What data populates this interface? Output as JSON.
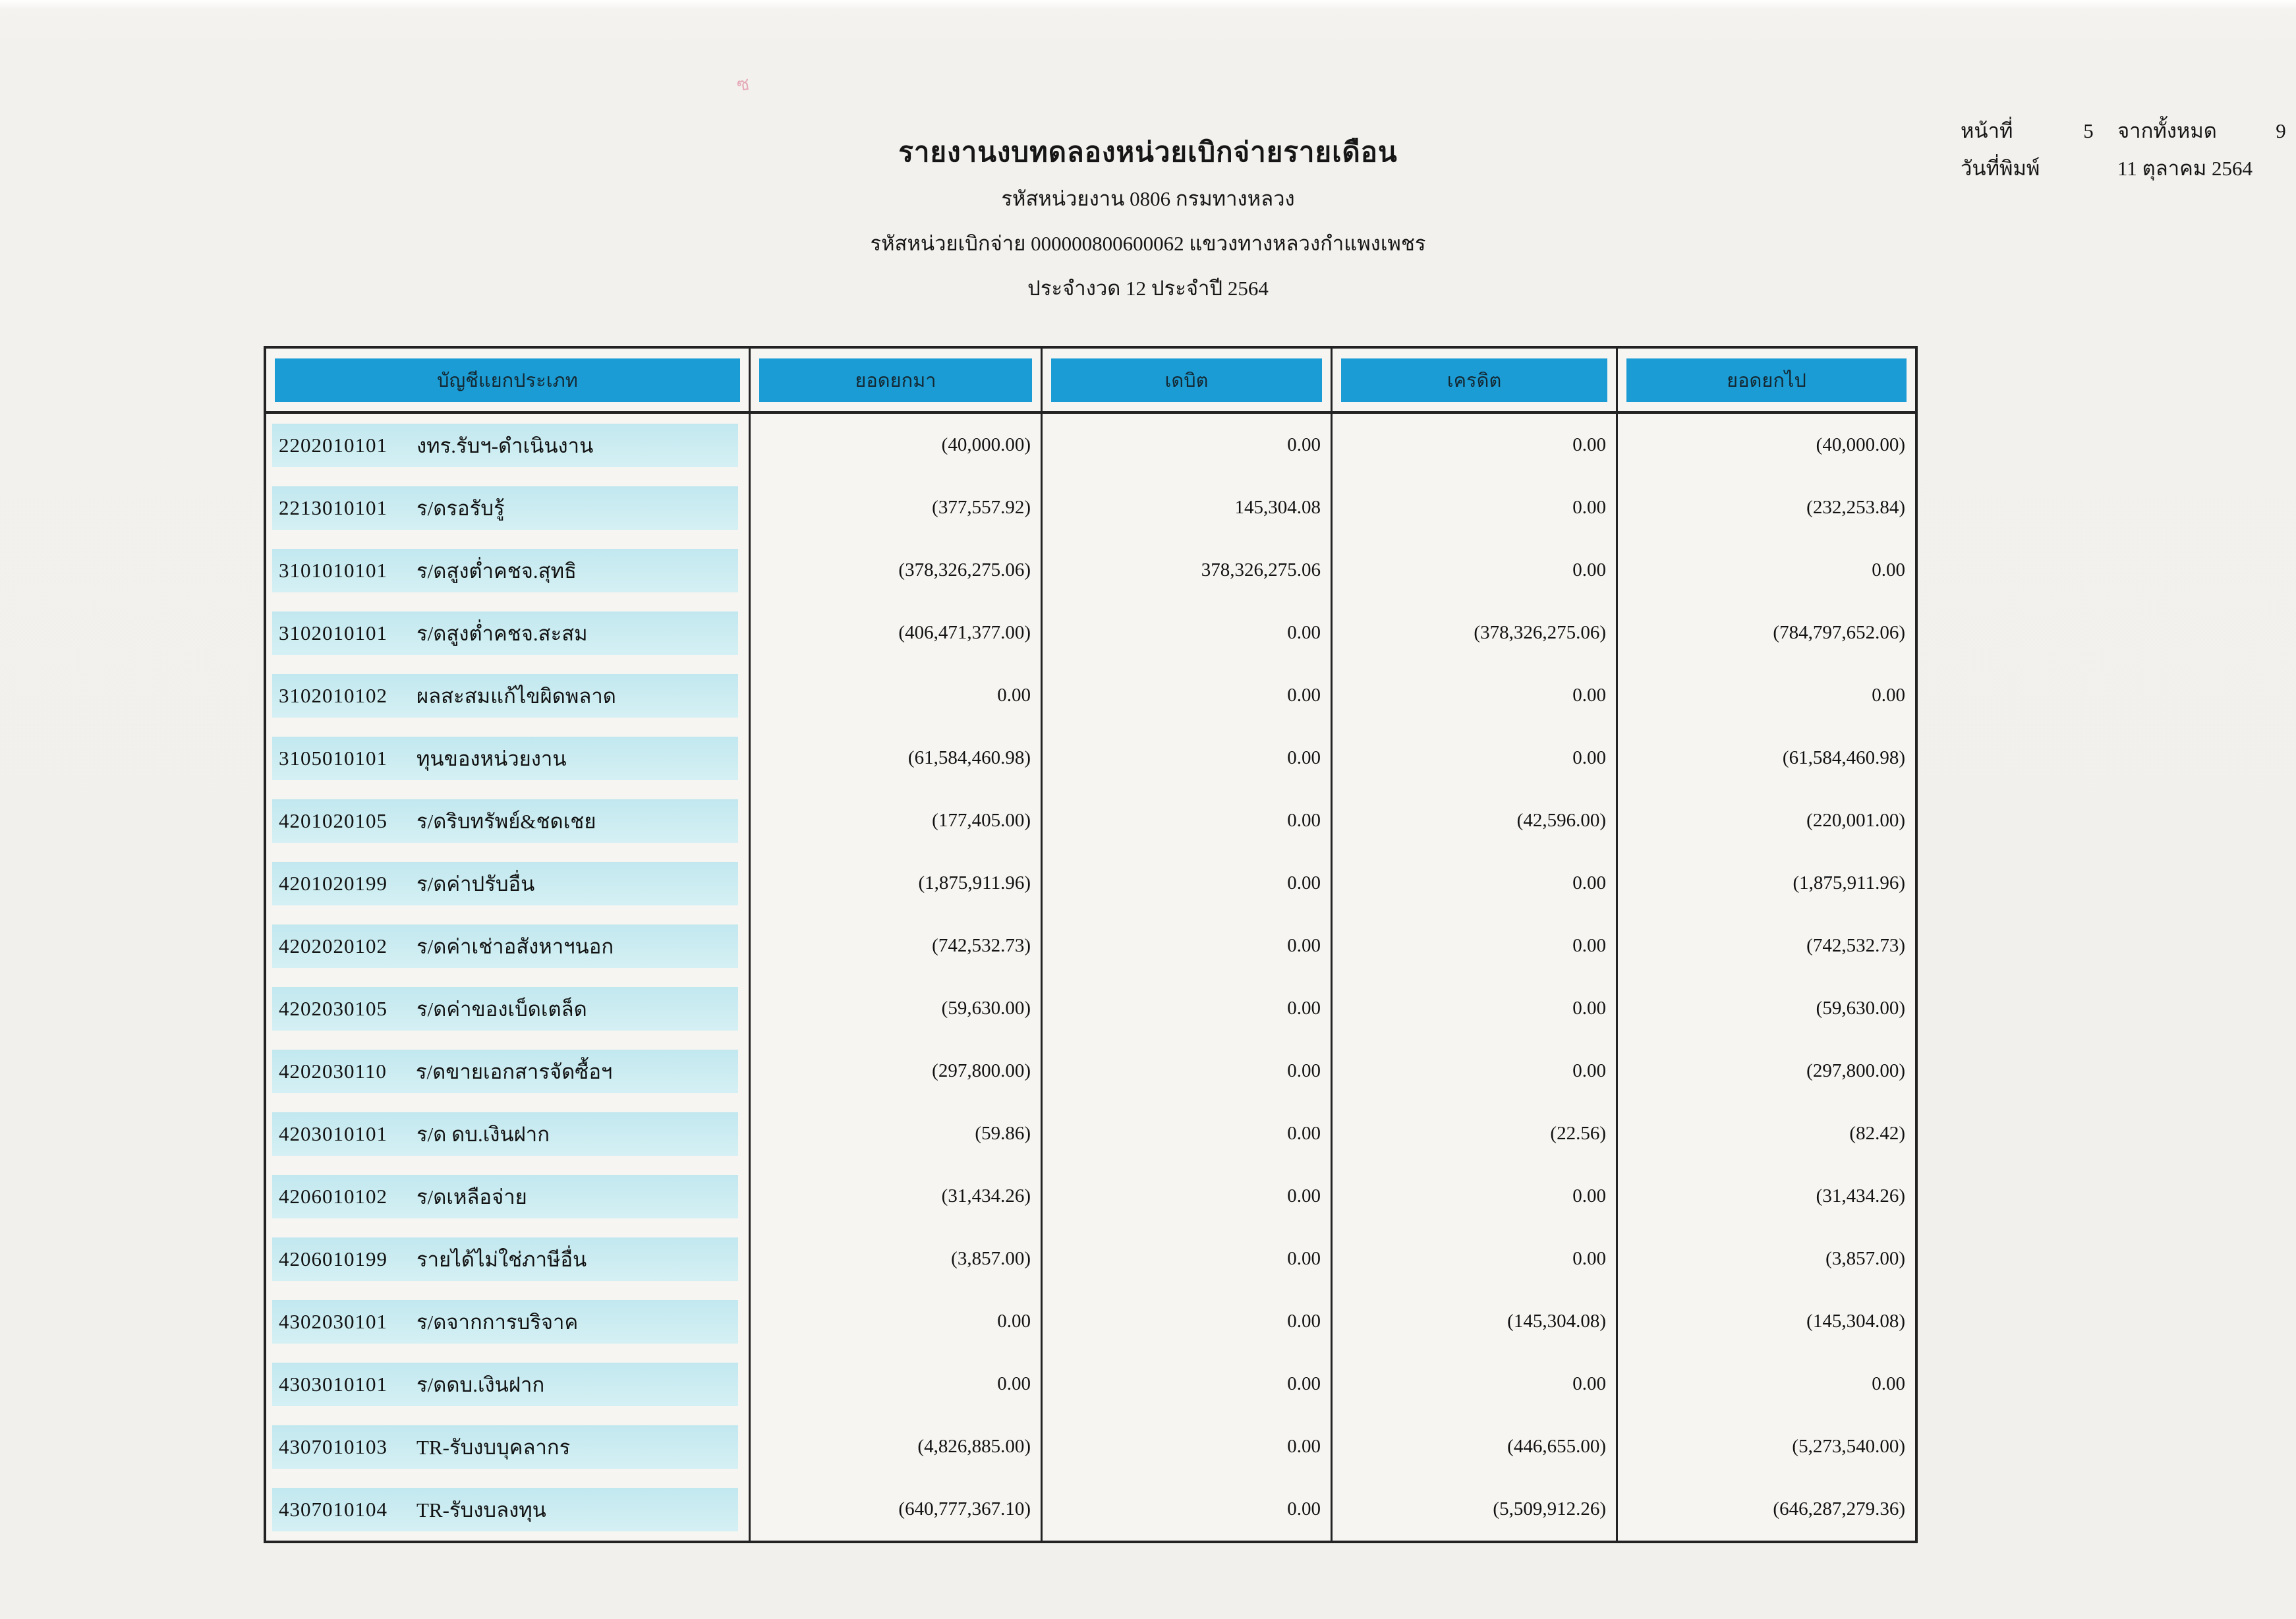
{
  "page": {
    "title": "รายงานงบทดลองหน่วยเบิกจ่ายรายเดือน",
    "subtitle_agency": "รหัสหน่วยงาน 0806 กรมทางหลวง",
    "subtitle_unit": "รหัสหน่วยเบิกจ่าย 000000800600062 แขวงทางหลวงกำแพงเพชร",
    "subtitle_period": "ประจำงวด 12 ประจำปี 2564"
  },
  "page_info": {
    "page_label": "หน้าที่",
    "page_number": "5",
    "of_label": "จากทั้งหมด",
    "total_pages": "9",
    "print_date_label": "วันที่พิมพ์",
    "print_date": "11 ตุลาคม 2564"
  },
  "artifact_mark": "ซ",
  "table": {
    "headers": [
      "บัญชีแยกประเภท",
      "ยอดยกมา",
      "เดบิต",
      "เครดิต",
      "ยอดยกไป"
    ],
    "rows": [
      {
        "code": "2202010101",
        "name": "งทร.รับฯ-ดำเนินงาน",
        "carry_forward": "(40,000.00)",
        "debit": "0.00",
        "credit": "0.00",
        "carry_over": "(40,000.00)"
      },
      {
        "code": "2213010101",
        "name": "ร/ดรอรับรู้",
        "carry_forward": "(377,557.92)",
        "debit": "145,304.08",
        "credit": "0.00",
        "carry_over": "(232,253.84)"
      },
      {
        "code": "3101010101",
        "name": "ร/ดสูงต่ำคชจ.สุทธิ",
        "carry_forward": "(378,326,275.06)",
        "debit": "378,326,275.06",
        "credit": "0.00",
        "carry_over": "0.00"
      },
      {
        "code": "3102010101",
        "name": "ร/ดสูงต่ำคชจ.สะสม",
        "carry_forward": "(406,471,377.00)",
        "debit": "0.00",
        "credit": "(378,326,275.06)",
        "carry_over": "(784,797,652.06)"
      },
      {
        "code": "3102010102",
        "name": "ผลสะสมแก้ไขผิดพลาด",
        "carry_forward": "0.00",
        "debit": "0.00",
        "credit": "0.00",
        "carry_over": "0.00"
      },
      {
        "code": "3105010101",
        "name": "ทุนของหน่วยงาน",
        "carry_forward": "(61,584,460.98)",
        "debit": "0.00",
        "credit": "0.00",
        "carry_over": "(61,584,460.98)"
      },
      {
        "code": "4201020105",
        "name": "ร/ดริบทรัพย์&ชดเชย",
        "carry_forward": "(177,405.00)",
        "debit": "0.00",
        "credit": "(42,596.00)",
        "carry_over": "(220,001.00)"
      },
      {
        "code": "4201020199",
        "name": "ร/ดค่าปรับอื่น",
        "carry_forward": "(1,875,911.96)",
        "debit": "0.00",
        "credit": "0.00",
        "carry_over": "(1,875,911.96)"
      },
      {
        "code": "4202020102",
        "name": "ร/ดค่าเช่าอสังหาฯนอก",
        "carry_forward": "(742,532.73)",
        "debit": "0.00",
        "credit": "0.00",
        "carry_over": "(742,532.73)"
      },
      {
        "code": "4202030105",
        "name": "ร/ดค่าของเบ็ดเตล็ด",
        "carry_forward": "(59,630.00)",
        "debit": "0.00",
        "credit": "0.00",
        "carry_over": "(59,630.00)"
      },
      {
        "code": "4202030110",
        "name": "ร/ดขายเอกสารจัดซื้อฯ",
        "carry_forward": "(297,800.00)",
        "debit": "0.00",
        "credit": "0.00",
        "carry_over": "(297,800.00)"
      },
      {
        "code": "4203010101",
        "name": "ร/ด ดบ.เงินฝาก",
        "carry_forward": "(59.86)",
        "debit": "0.00",
        "credit": "(22.56)",
        "carry_over": "(82.42)"
      },
      {
        "code": "4206010102",
        "name": "ร/ดเหลือจ่าย",
        "carry_forward": "(31,434.26)",
        "debit": "0.00",
        "credit": "0.00",
        "carry_over": "(31,434.26)"
      },
      {
        "code": "4206010199",
        "name": "รายได้ไม่ใช่ภาษีอื่น",
        "carry_forward": "(3,857.00)",
        "debit": "0.00",
        "credit": "0.00",
        "carry_over": "(3,857.00)"
      },
      {
        "code": "4302030101",
        "name": "ร/ดจากการบริจาค",
        "carry_forward": "0.00",
        "debit": "0.00",
        "credit": "(145,304.08)",
        "carry_over": "(145,304.08)"
      },
      {
        "code": "4303010101",
        "name": "ร/ดดบ.เงินฝาก",
        "carry_forward": "0.00",
        "debit": "0.00",
        "credit": "0.00",
        "carry_over": "0.00"
      },
      {
        "code": "4307010103",
        "name": "TR-รับงบบุคลากร",
        "carry_forward": "(4,826,885.00)",
        "debit": "0.00",
        "credit": "(446,655.00)",
        "carry_over": "(5,273,540.00)"
      },
      {
        "code": "4307010104",
        "name": "TR-รับงบลงทุน",
        "carry_forward": "(640,777,367.10)",
        "debit": "0.00",
        "credit": "(5,509,912.26)",
        "carry_over": "(646,287,279.36)"
      }
    ]
  },
  "colors": {
    "header_bar": "#1b9cd4",
    "row_band": "#cdedf2",
    "table_border": "#232323",
    "paper": "#f3f1ed"
  }
}
